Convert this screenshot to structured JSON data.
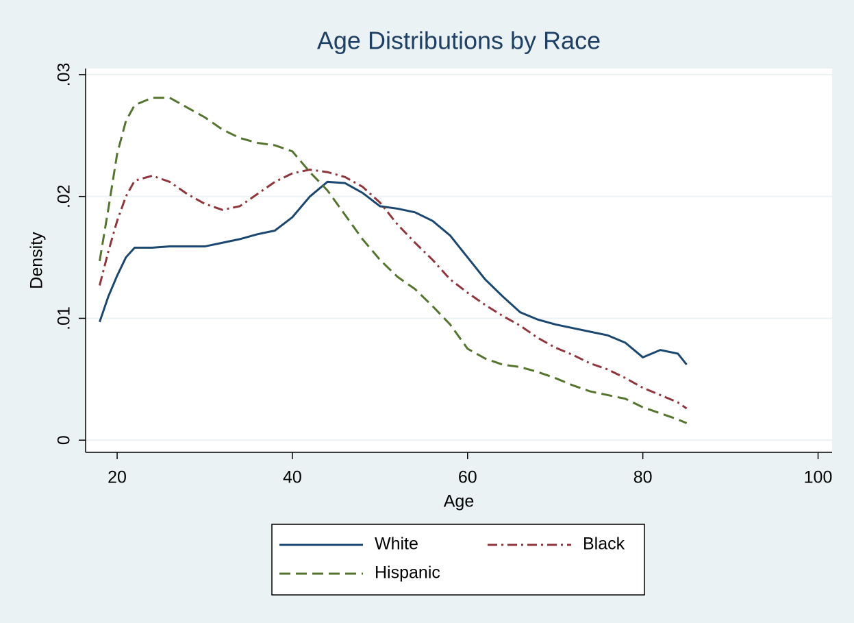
{
  "chart_data": {
    "type": "line",
    "title": "Age Distributions by Race",
    "x_label": "Age",
    "y_label": "Density",
    "x": [
      18,
      19,
      20,
      21,
      22,
      24,
      26,
      28,
      30,
      32,
      34,
      36,
      38,
      40,
      42,
      44,
      46,
      48,
      50,
      52,
      54,
      56,
      58,
      60,
      62,
      64,
      66,
      68,
      70,
      72,
      74,
      76,
      78,
      80,
      82,
      84,
      85
    ],
    "series": [
      {
        "name": "White",
        "color": "#1a476f",
        "style": "solid",
        "values": [
          0.0097,
          0.0118,
          0.0135,
          0.015,
          0.0158,
          0.0158,
          0.0159,
          0.0159,
          0.0159,
          0.0162,
          0.0165,
          0.0169,
          0.0172,
          0.0183,
          0.02,
          0.0212,
          0.0211,
          0.0203,
          0.0192,
          0.019,
          0.0187,
          0.018,
          0.0168,
          0.015,
          0.0132,
          0.0118,
          0.0105,
          0.0099,
          0.0095,
          0.0092,
          0.0089,
          0.0086,
          0.008,
          0.0068,
          0.0074,
          0.0071,
          0.0062
        ]
      },
      {
        "name": "Black",
        "color": "#90353b",
        "style": "dashdot",
        "values": [
          0.0127,
          0.0155,
          0.018,
          0.02,
          0.0213,
          0.0217,
          0.0212,
          0.0202,
          0.0194,
          0.0189,
          0.0192,
          0.0202,
          0.0212,
          0.0219,
          0.0222,
          0.022,
          0.0216,
          0.0208,
          0.0195,
          0.0177,
          0.0162,
          0.0148,
          0.0132,
          0.0121,
          0.0111,
          0.0102,
          0.0094,
          0.0084,
          0.0076,
          0.007,
          0.0063,
          0.0058,
          0.0051,
          0.0043,
          0.0037,
          0.0031,
          0.0026
        ]
      },
      {
        "name": "Hispanic",
        "color": "#55752f",
        "style": "dash",
        "values": [
          0.0147,
          0.019,
          0.0235,
          0.0262,
          0.0275,
          0.0281,
          0.0281,
          0.0273,
          0.0265,
          0.0255,
          0.0248,
          0.0244,
          0.0242,
          0.0237,
          0.022,
          0.0205,
          0.0185,
          0.0165,
          0.0148,
          0.0134,
          0.0124,
          0.011,
          0.0095,
          0.0075,
          0.0067,
          0.0062,
          0.006,
          0.0056,
          0.0051,
          0.0045,
          0.004,
          0.0037,
          0.0034,
          0.0027,
          0.0022,
          0.0017,
          0.0014
        ]
      }
    ],
    "xlim": [
      16.4,
      101.6
    ],
    "xticks": [
      20,
      40,
      60,
      80,
      100
    ],
    "ylim": [
      -0.001,
      0.0305
    ],
    "yticks": [
      0,
      {
        "value": 0.01,
        "label": ".01"
      },
      {
        "value": 0.02,
        "label": ".02"
      },
      {
        "value": 0.03,
        "label": ".03"
      }
    ],
    "grid": true,
    "legend": "bottom"
  }
}
